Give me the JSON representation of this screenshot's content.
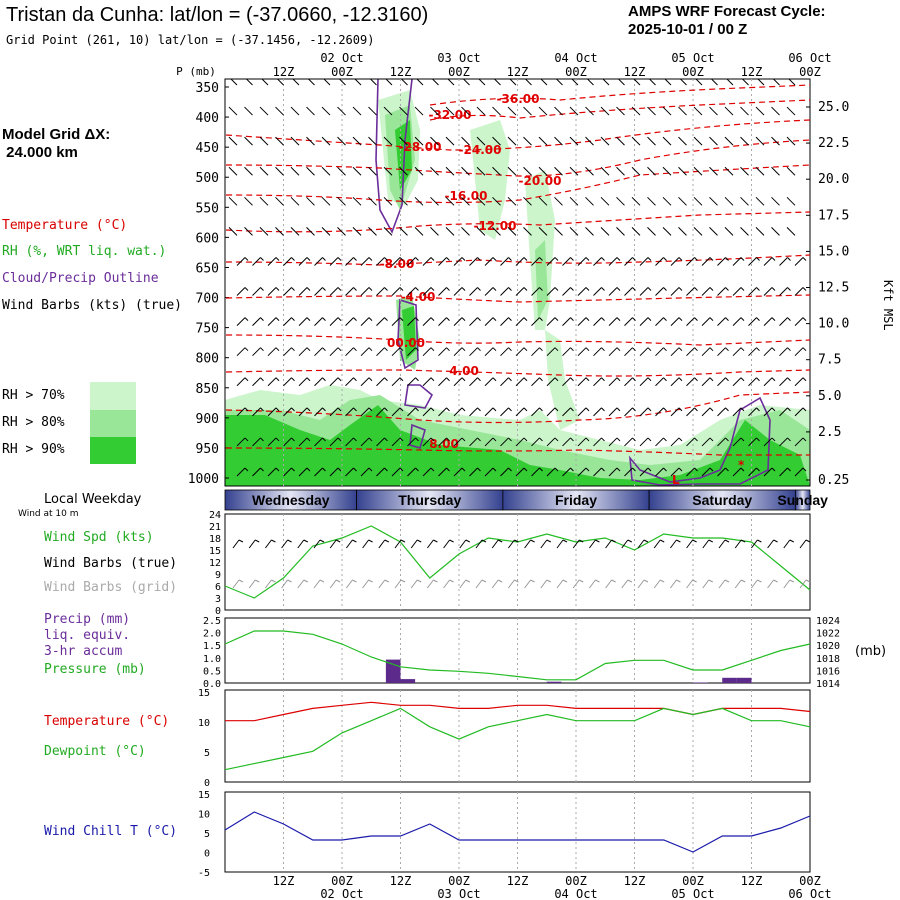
{
  "header": {
    "title": "Tristan da Cunha:  lat/lon = (-37.0660, -12.3160)",
    "grid_point": "Grid Point (261, 10) lat/lon = (-37.1456, -12.2609)",
    "cycle_line1": "AMPS WRF Forecast Cycle:",
    "cycle_line2": "2025-10-01 / 00  Z"
  },
  "model_grid": {
    "label": "Model Grid ΔX:",
    "value": " 24.000 km"
  },
  "legend": {
    "temperature": "Temperature (°C)",
    "rh": "RH (%, WRT liq. wat.)",
    "cloud": "Cloud/Precip Outline",
    "wind": "Wind Barbs (kts) (true)",
    "rh70": "RH > 70%",
    "rh80": "RH > 80%",
    "rh90": "RH > 90%",
    "colors": {
      "rh70": "#ccf5cc",
      "rh80": "#99e699",
      "rh90": "#33cc33",
      "temp": "#e00000",
      "cloud": "#6a2d9a"
    }
  },
  "time_axis": {
    "top_dates": [
      "02 Oct",
      "03 Oct",
      "04 Oct",
      "05 Oct",
      "06 Oct"
    ],
    "hour_labels": [
      "12Z",
      "00Z",
      "12Z",
      "00Z",
      "12Z",
      "00Z",
      "12Z",
      "00Z",
      "12Z",
      "00Z"
    ],
    "weekday_title": "Local Weekday",
    "weekdays": [
      "Wednesday",
      "Thursday",
      "Friday",
      "Saturday",
      "Sunday"
    ],
    "wind_at": "Wind at 10 m"
  },
  "panels": {
    "cross_section": {
      "left_label": "P (mb)",
      "pressure_ticks": [
        "350",
        "400",
        "450",
        "500",
        "550",
        "600",
        "650",
        "700",
        "750",
        "800",
        "850",
        "900",
        "950",
        "1000"
      ],
      "kft_ticks": [
        "25.0",
        "22.5",
        "20.0",
        "17.5",
        "15.0",
        "12.5",
        "10.0",
        "7.5",
        "5.0",
        "2.5",
        "0.25"
      ],
      "right_label": "Kft MSL",
      "contour_labels": [
        "-36.00",
        "-32.00",
        "-28.00",
        "-24.00",
        "-20.00",
        "-16.00",
        "-12.00",
        "-8.00",
        "-4.00",
        "00.00",
        "4.00",
        "8.00"
      ]
    },
    "wind": {
      "labels": [
        "Wind Spd (kts)",
        "Wind Barbs (true)",
        "Wind Barbs (grid)"
      ],
      "ticks": [
        "24",
        "21",
        "18",
        "15",
        "12",
        "9",
        "6",
        "3",
        "0"
      ]
    },
    "precip": {
      "labels": [
        "Precip (mm)",
        "liq. equiv.",
        "3-hr accum",
        "Pressure (mb)"
      ],
      "left_ticks": [
        "2.5",
        "2.0",
        "1.5",
        "1.0",
        "0.5",
        "0.0"
      ],
      "right_ticks": [
        "1024",
        "1022",
        "1020",
        "1018",
        "1016",
        "1014"
      ],
      "right_unit": "(mb)"
    },
    "temp": {
      "labels": [
        "Temperature (°C)",
        "Dewpoint (°C)"
      ],
      "ticks": [
        "15",
        "10",
        "5",
        "0"
      ]
    },
    "chill": {
      "labels": [
        "Wind Chill T (°C)"
      ],
      "ticks": [
        "15",
        "10",
        "5",
        "0",
        "-5"
      ]
    }
  },
  "chart_data": [
    {
      "type": "line",
      "title": "Wind Spd (kts)",
      "x_hours": [
        0,
        6,
        12,
        18,
        24,
        30,
        36,
        42,
        48,
        54,
        60,
        66,
        72,
        78,
        84,
        90,
        96,
        102,
        108,
        114,
        120
      ],
      "series": [
        {
          "name": "Wind Spd (kts)",
          "values": [
            6,
            3,
            8,
            16,
            18,
            21,
            17,
            8,
            14,
            18,
            17,
            19,
            17,
            18,
            15,
            19,
            18,
            18,
            17,
            11,
            5
          ]
        }
      ],
      "ylim": [
        0,
        24
      ]
    },
    {
      "type": "bar",
      "title": "Precip (mm) liq. equiv. 3-hr accum",
      "x_hours": [
        33,
        36,
        66,
        96,
        102,
        105
      ],
      "values": [
        0.9,
        0.15,
        0.05,
        0.02,
        0.2,
        0.2
      ],
      "ylim": [
        0,
        2.5
      ]
    },
    {
      "type": "line",
      "title": "Pressure (mb)",
      "x_hours": [
        0,
        6,
        12,
        18,
        24,
        30,
        36,
        42,
        48,
        54,
        60,
        66,
        72,
        78,
        84,
        90,
        96,
        102,
        108,
        114,
        120
      ],
      "series": [
        {
          "name": "Pressure (mb)",
          "values": [
            1020,
            1022,
            1022,
            1021.5,
            1020,
            1018,
            1016.5,
            1016,
            1015.8,
            1015.5,
            1015,
            1014.5,
            1014.5,
            1017,
            1017.5,
            1017.5,
            1016,
            1016,
            1017.5,
            1019,
            1020
          ]
        }
      ],
      "ylim": [
        1014,
        1024
      ]
    },
    {
      "type": "line",
      "title": "Temperature / Dewpoint (°C)",
      "x_hours": [
        0,
        6,
        12,
        18,
        24,
        30,
        36,
        42,
        48,
        54,
        60,
        66,
        72,
        78,
        84,
        90,
        96,
        102,
        108,
        114,
        120
      ],
      "series": [
        {
          "name": "Temperature (°C)",
          "values": [
            10,
            10,
            11,
            12,
            12.5,
            13,
            12.5,
            12.5,
            12,
            12,
            12.5,
            12.5,
            12,
            12,
            12,
            12,
            11,
            12,
            12,
            12,
            11.5
          ]
        },
        {
          "name": "Dewpoint (°C)",
          "values": [
            2,
            3,
            4,
            5,
            8,
            10,
            12,
            9,
            7,
            9,
            10,
            11,
            10,
            10,
            10,
            12,
            11,
            12,
            10,
            10,
            9
          ]
        }
      ],
      "ylim": [
        0,
        15
      ]
    },
    {
      "type": "line",
      "title": "Wind Chill T (°C)",
      "x_hours": [
        0,
        6,
        12,
        18,
        24,
        30,
        36,
        42,
        48,
        54,
        60,
        66,
        72,
        78,
        84,
        90,
        96,
        102,
        108,
        114,
        120
      ],
      "series": [
        {
          "name": "Wind Chill T (°C)",
          "values": [
            5.5,
            10,
            7,
            3,
            3,
            4,
            4,
            7,
            3,
            3,
            3,
            3,
            3,
            3,
            3,
            3,
            0,
            4,
            4,
            6,
            9
          ]
        }
      ],
      "ylim": [
        -5,
        15
      ]
    }
  ]
}
